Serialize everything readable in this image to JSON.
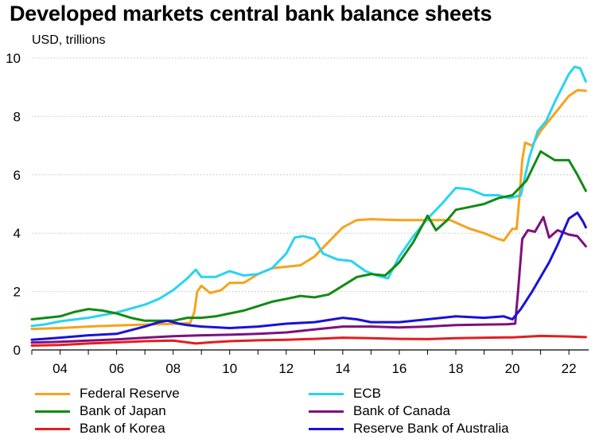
{
  "colors": {
    "federal_reserve": "#F7A21B",
    "ecb": "#29D3F2",
    "bank_of_japan": "#138A13",
    "bank_of_canada": "#7E107E",
    "bank_of_korea": "#E31E1E",
    "reserve_bank_of_australia": "#1A12D6",
    "grid": "#BFBFBF"
  },
  "chart_data": {
    "type": "line",
    "title": "Developed markets central bank balance sheets",
    "subtitle": "USD, trillions",
    "xlabel": "",
    "ylabel": "USD, trillions",
    "xlim": [
      2003.0,
      2022.7
    ],
    "ylim": [
      0,
      10
    ],
    "yticks": [
      0,
      2,
      4,
      6,
      8,
      10
    ],
    "xticks": [
      {
        "value": 2004,
        "label": "04"
      },
      {
        "value": 2006,
        "label": "06"
      },
      {
        "value": 2008,
        "label": "08"
      },
      {
        "value": 2010,
        "label": "10"
      },
      {
        "value": 2012,
        "label": "12"
      },
      {
        "value": 2014,
        "label": "14"
      },
      {
        "value": 2016,
        "label": "16"
      },
      {
        "value": 2018,
        "label": "18"
      },
      {
        "value": 2020,
        "label": "20"
      },
      {
        "value": 2022,
        "label": "22"
      }
    ],
    "legend_position": "bottom",
    "series": [
      {
        "key": "federal_reserve",
        "name": "Federal Reserve",
        "points": [
          [
            2003.0,
            0.72
          ],
          [
            2004.0,
            0.75
          ],
          [
            2005.0,
            0.8
          ],
          [
            2006.0,
            0.84
          ],
          [
            2007.0,
            0.87
          ],
          [
            2008.0,
            0.89
          ],
          [
            2008.6,
            0.92
          ],
          [
            2008.75,
            1.3
          ],
          [
            2008.85,
            2.0
          ],
          [
            2009.0,
            2.2
          ],
          [
            2009.3,
            1.95
          ],
          [
            2009.7,
            2.05
          ],
          [
            2010.0,
            2.3
          ],
          [
            2010.5,
            2.3
          ],
          [
            2011.0,
            2.6
          ],
          [
            2011.5,
            2.8
          ],
          [
            2012.0,
            2.85
          ],
          [
            2012.5,
            2.9
          ],
          [
            2013.0,
            3.2
          ],
          [
            2013.5,
            3.7
          ],
          [
            2014.0,
            4.2
          ],
          [
            2014.5,
            4.45
          ],
          [
            2015.0,
            4.48
          ],
          [
            2016.0,
            4.45
          ],
          [
            2017.0,
            4.45
          ],
          [
            2017.8,
            4.45
          ],
          [
            2018.5,
            4.15
          ],
          [
            2019.0,
            4.0
          ],
          [
            2019.5,
            3.8
          ],
          [
            2019.7,
            3.75
          ],
          [
            2020.0,
            4.15
          ],
          [
            2020.15,
            4.15
          ],
          [
            2020.25,
            5.2
          ],
          [
            2020.35,
            6.5
          ],
          [
            2020.45,
            7.1
          ],
          [
            2020.7,
            7.0
          ],
          [
            2021.0,
            7.5
          ],
          [
            2021.5,
            8.1
          ],
          [
            2022.0,
            8.7
          ],
          [
            2022.3,
            8.9
          ],
          [
            2022.6,
            8.88
          ]
        ]
      },
      {
        "key": "ecb",
        "name": "ECB",
        "points": [
          [
            2003.0,
            0.82
          ],
          [
            2003.5,
            0.88
          ],
          [
            2004.0,
            0.98
          ],
          [
            2005.0,
            1.1
          ],
          [
            2006.0,
            1.28
          ],
          [
            2007.0,
            1.55
          ],
          [
            2007.5,
            1.75
          ],
          [
            2008.0,
            2.05
          ],
          [
            2008.5,
            2.45
          ],
          [
            2008.8,
            2.75
          ],
          [
            2009.0,
            2.5
          ],
          [
            2009.5,
            2.5
          ],
          [
            2010.0,
            2.7
          ],
          [
            2010.5,
            2.55
          ],
          [
            2011.0,
            2.6
          ],
          [
            2011.5,
            2.8
          ],
          [
            2012.0,
            3.3
          ],
          [
            2012.3,
            3.85
          ],
          [
            2012.6,
            3.9
          ],
          [
            2013.0,
            3.8
          ],
          [
            2013.3,
            3.3
          ],
          [
            2013.8,
            3.1
          ],
          [
            2014.3,
            3.05
          ],
          [
            2014.8,
            2.7
          ],
          [
            2015.2,
            2.55
          ],
          [
            2015.6,
            2.45
          ],
          [
            2016.0,
            3.2
          ],
          [
            2016.5,
            3.9
          ],
          [
            2017.0,
            4.5
          ],
          [
            2017.5,
            5.0
          ],
          [
            2018.0,
            5.55
          ],
          [
            2018.5,
            5.5
          ],
          [
            2019.0,
            5.3
          ],
          [
            2019.5,
            5.3
          ],
          [
            2019.9,
            5.2
          ],
          [
            2020.3,
            5.3
          ],
          [
            2020.6,
            6.6
          ],
          [
            2020.9,
            7.5
          ],
          [
            2021.2,
            7.85
          ],
          [
            2021.5,
            8.5
          ],
          [
            2022.0,
            9.45
          ],
          [
            2022.2,
            9.7
          ],
          [
            2022.4,
            9.65
          ],
          [
            2022.6,
            9.2
          ]
        ]
      },
      {
        "key": "bank_of_japan",
        "name": "Bank of Japan",
        "points": [
          [
            2003.0,
            1.05
          ],
          [
            2003.5,
            1.1
          ],
          [
            2004.0,
            1.15
          ],
          [
            2004.5,
            1.3
          ],
          [
            2005.0,
            1.4
          ],
          [
            2005.5,
            1.35
          ],
          [
            2006.0,
            1.25
          ],
          [
            2006.5,
            1.1
          ],
          [
            2007.0,
            1.0
          ],
          [
            2007.5,
            1.0
          ],
          [
            2008.0,
            1.0
          ],
          [
            2008.5,
            1.1
          ],
          [
            2009.0,
            1.1
          ],
          [
            2009.5,
            1.15
          ],
          [
            2010.0,
            1.25
          ],
          [
            2010.5,
            1.35
          ],
          [
            2011.0,
            1.5
          ],
          [
            2011.5,
            1.65
          ],
          [
            2012.0,
            1.75
          ],
          [
            2012.5,
            1.85
          ],
          [
            2013.0,
            1.8
          ],
          [
            2013.5,
            1.9
          ],
          [
            2014.0,
            2.2
          ],
          [
            2014.5,
            2.5
          ],
          [
            2015.0,
            2.6
          ],
          [
            2015.5,
            2.55
          ],
          [
            2016.0,
            3.0
          ],
          [
            2016.5,
            3.7
          ],
          [
            2017.0,
            4.6
          ],
          [
            2017.3,
            4.1
          ],
          [
            2017.7,
            4.45
          ],
          [
            2018.0,
            4.8
          ],
          [
            2018.5,
            4.9
          ],
          [
            2019.0,
            5.0
          ],
          [
            2019.5,
            5.2
          ],
          [
            2020.0,
            5.3
          ],
          [
            2020.5,
            5.8
          ],
          [
            2021.0,
            6.8
          ],
          [
            2021.5,
            6.5
          ],
          [
            2022.0,
            6.5
          ],
          [
            2022.3,
            6.0
          ],
          [
            2022.6,
            5.45
          ]
        ]
      },
      {
        "key": "bank_of_canada",
        "name": "Bank of Canada",
        "points": [
          [
            2003.0,
            0.25
          ],
          [
            2004.0,
            0.28
          ],
          [
            2005.0,
            0.32
          ],
          [
            2006.0,
            0.36
          ],
          [
            2007.0,
            0.42
          ],
          [
            2008.0,
            0.47
          ],
          [
            2009.0,
            0.5
          ],
          [
            2010.0,
            0.52
          ],
          [
            2011.0,
            0.55
          ],
          [
            2012.0,
            0.6
          ],
          [
            2013.0,
            0.7
          ],
          [
            2014.0,
            0.8
          ],
          [
            2015.0,
            0.8
          ],
          [
            2016.0,
            0.77
          ],
          [
            2017.0,
            0.8
          ],
          [
            2018.0,
            0.85
          ],
          [
            2019.0,
            0.87
          ],
          [
            2019.8,
            0.88
          ],
          [
            2020.1,
            0.9
          ],
          [
            2020.2,
            2.0
          ],
          [
            2020.35,
            3.8
          ],
          [
            2020.55,
            4.1
          ],
          [
            2020.8,
            4.05
          ],
          [
            2021.1,
            4.55
          ],
          [
            2021.3,
            3.85
          ],
          [
            2021.6,
            4.1
          ],
          [
            2022.0,
            3.95
          ],
          [
            2022.3,
            3.9
          ],
          [
            2022.6,
            3.55
          ]
        ]
      },
      {
        "key": "bank_of_korea",
        "name": "Bank of Korea",
        "points": [
          [
            2003.0,
            0.15
          ],
          [
            2004.0,
            0.17
          ],
          [
            2005.0,
            0.22
          ],
          [
            2006.0,
            0.26
          ],
          [
            2007.0,
            0.3
          ],
          [
            2008.0,
            0.32
          ],
          [
            2008.8,
            0.22
          ],
          [
            2009.2,
            0.25
          ],
          [
            2010.0,
            0.3
          ],
          [
            2011.0,
            0.33
          ],
          [
            2012.0,
            0.35
          ],
          [
            2013.0,
            0.38
          ],
          [
            2014.0,
            0.42
          ],
          [
            2015.0,
            0.4
          ],
          [
            2016.0,
            0.38
          ],
          [
            2017.0,
            0.37
          ],
          [
            2018.0,
            0.4
          ],
          [
            2019.0,
            0.42
          ],
          [
            2020.0,
            0.43
          ],
          [
            2021.0,
            0.48
          ],
          [
            2022.0,
            0.46
          ],
          [
            2022.6,
            0.44
          ]
        ]
      },
      {
        "key": "reserve_bank_of_australia",
        "name": "Reserve Bank of Australia",
        "points": [
          [
            2003.0,
            0.35
          ],
          [
            2004.0,
            0.42
          ],
          [
            2005.0,
            0.5
          ],
          [
            2006.0,
            0.55
          ],
          [
            2007.0,
            0.8
          ],
          [
            2007.5,
            0.95
          ],
          [
            2007.8,
            1.0
          ],
          [
            2008.2,
            0.9
          ],
          [
            2008.5,
            0.85
          ],
          [
            2009.0,
            0.8
          ],
          [
            2010.0,
            0.75
          ],
          [
            2011.0,
            0.8
          ],
          [
            2012.0,
            0.9
          ],
          [
            2013.0,
            0.95
          ],
          [
            2014.0,
            1.1
          ],
          [
            2014.5,
            1.05
          ],
          [
            2015.0,
            0.95
          ],
          [
            2016.0,
            0.95
          ],
          [
            2017.0,
            1.05
          ],
          [
            2018.0,
            1.15
          ],
          [
            2019.0,
            1.1
          ],
          [
            2019.7,
            1.15
          ],
          [
            2020.0,
            1.05
          ],
          [
            2020.3,
            1.4
          ],
          [
            2020.7,
            2.0
          ],
          [
            2021.0,
            2.5
          ],
          [
            2021.3,
            3.0
          ],
          [
            2021.6,
            3.6
          ],
          [
            2022.0,
            4.5
          ],
          [
            2022.3,
            4.7
          ],
          [
            2022.5,
            4.4
          ],
          [
            2022.6,
            4.2
          ]
        ]
      }
    ]
  }
}
